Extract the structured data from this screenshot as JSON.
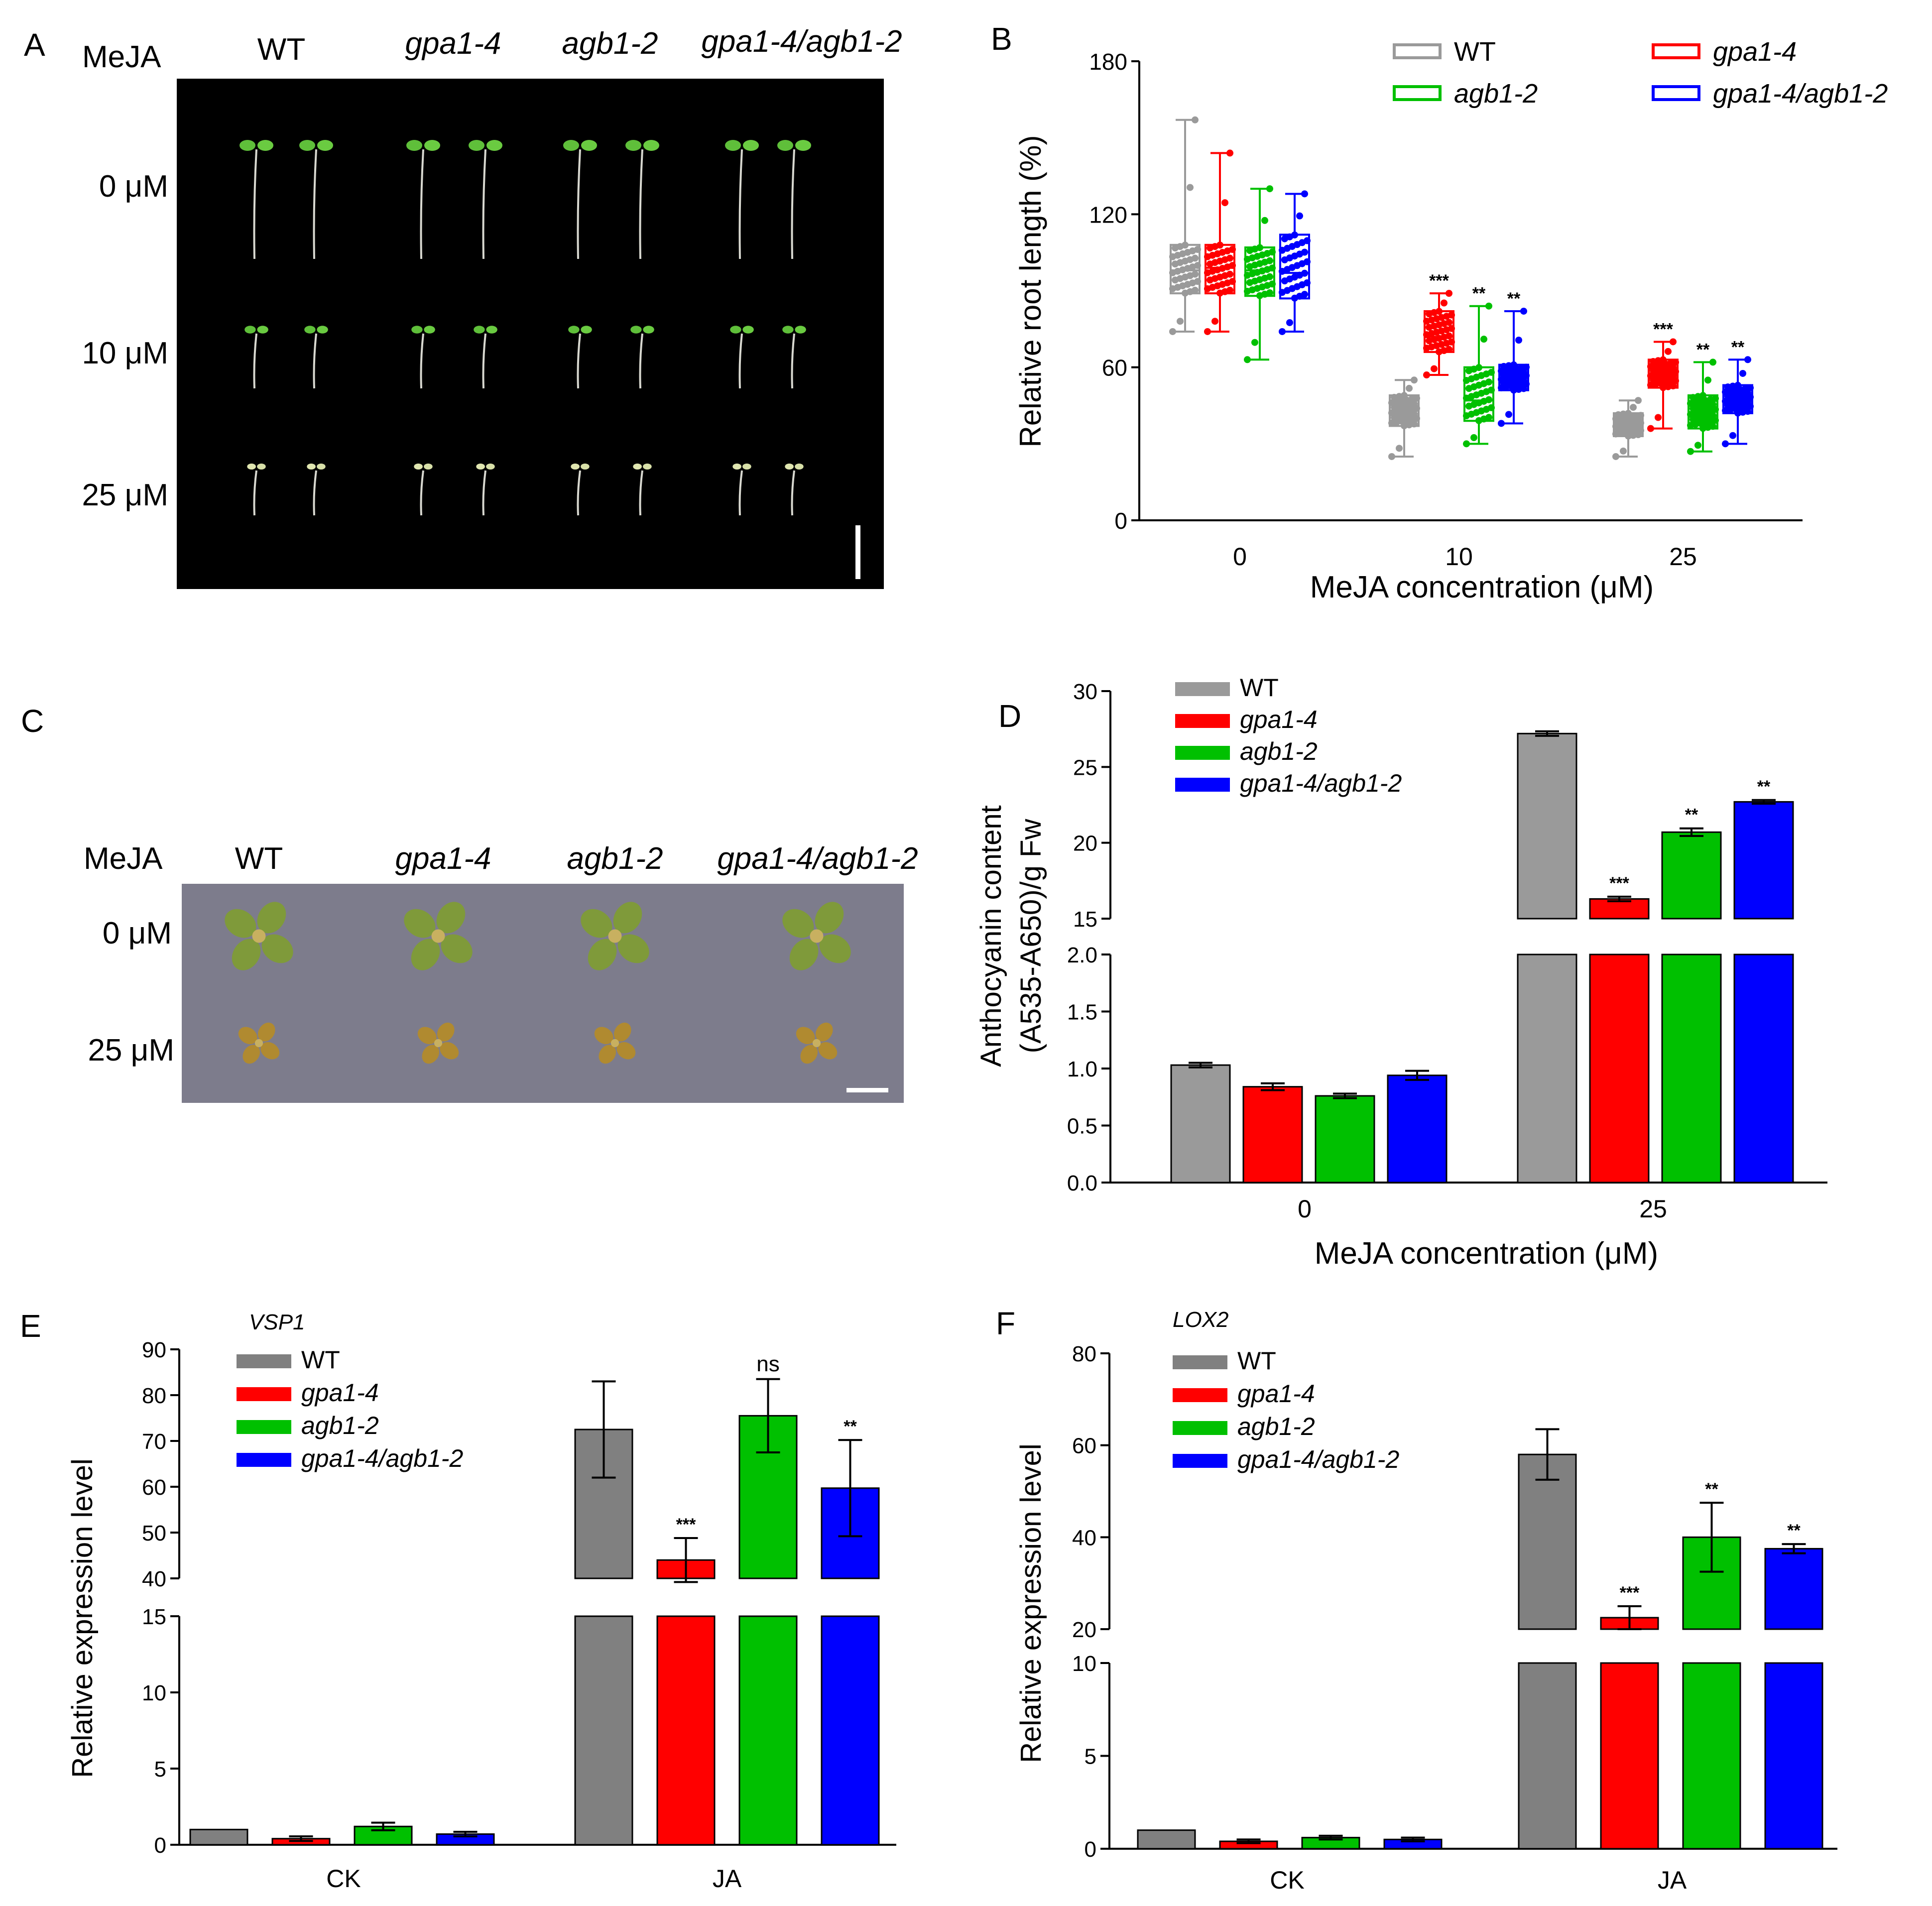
{
  "figure": {
    "panel_labels": [
      "A",
      "B",
      "C",
      "D",
      "E",
      "F"
    ],
    "genotypes": [
      "WT",
      "gpa1-4",
      "agb1-2",
      "gpa1-4/agb1-2"
    ],
    "colors": {
      "WT": "#9a9a9a",
      "gpa1-4": "#ff0000",
      "agb1-2": "#00c000",
      "gpa1-4/agb1-2": "#0000ff",
      "axis": "#000000"
    }
  },
  "panelA": {
    "treatment_label": "MeJA",
    "columns": [
      "WT",
      "gpa1-4",
      "agb1-2",
      "gpa1-4/agb1-2"
    ],
    "rows": [
      "0 μM",
      "10 μM",
      "25 μM"
    ],
    "background": "#000000"
  },
  "panelC": {
    "treatment_label": "MeJA",
    "columns": [
      "WT",
      "gpa1-4",
      "agb1-2",
      "gpa1-4/agb1-2"
    ],
    "rows": [
      "0 μM",
      "25 μM"
    ],
    "background": "#7d7c8c"
  },
  "chart_data": [
    {
      "id": "B",
      "type": "box",
      "ylabel": "Relative root length (%)",
      "xlabel": "MeJA concentration (μM)",
      "categories": [
        "0",
        "10",
        "25"
      ],
      "ylim": [
        0,
        180
      ],
      "yticks": [
        "0",
        "60",
        "120",
        "180"
      ],
      "legend": [
        "WT",
        "gpa1-4",
        "agb1-2",
        "gpa1-4/agb1-2"
      ],
      "legend_text": [
        "WT",
        "gpa1-4",
        "agb1-2",
        "gpa1-4/agb1-2"
      ],
      "series": [
        {
          "name": "WT",
          "boxes": [
            {
              "min": 74,
              "q1": 89,
              "median": 98,
              "q3": 108,
              "max": 157
            },
            {
              "min": 25,
              "q1": 37,
              "median": 43,
              "q3": 49,
              "max": 55
            },
            {
              "min": 25,
              "q1": 33,
              "median": 38,
              "q3": 42,
              "max": 47
            }
          ]
        },
        {
          "name": "gpa1-4",
          "boxes": [
            {
              "min": 74,
              "q1": 89,
              "median": 99,
              "q3": 108,
              "max": 144
            },
            {
              "min": 57,
              "q1": 66,
              "median": 72,
              "q3": 82,
              "max": 89
            },
            {
              "min": 36,
              "q1": 52,
              "median": 57,
              "q3": 63,
              "max": 70
            }
          ]
        },
        {
          "name": "agb1-2",
          "boxes": [
            {
              "min": 63,
              "q1": 88,
              "median": 98,
              "q3": 107,
              "max": 130
            },
            {
              "min": 30,
              "q1": 39,
              "median": 47,
              "q3": 60,
              "max": 84
            },
            {
              "min": 27,
              "q1": 36,
              "median": 41,
              "q3": 49,
              "max": 62
            }
          ]
        },
        {
          "name": "gpa1-4/agb1-2",
          "boxes": [
            {
              "min": 74,
              "q1": 87,
              "median": 97,
              "q3": 112,
              "max": 128
            },
            {
              "min": 38,
              "q1": 51,
              "median": 57,
              "q3": 61,
              "max": 82
            },
            {
              "min": 30,
              "q1": 42,
              "median": 47,
              "q3": 53,
              "max": 63
            }
          ]
        }
      ],
      "significance": [
        {
          "category": "10",
          "series": "gpa1-4",
          "label": "***"
        },
        {
          "category": "10",
          "series": "agb1-2",
          "label": "**"
        },
        {
          "category": "10",
          "series": "gpa1-4/agb1-2",
          "label": "**"
        },
        {
          "category": "25",
          "series": "gpa1-4",
          "label": "***"
        },
        {
          "category": "25",
          "series": "agb1-2",
          "label": "**"
        },
        {
          "category": "25",
          "series": "gpa1-4/agb1-2",
          "label": "**"
        }
      ]
    },
    {
      "id": "D",
      "type": "bar",
      "ylabel_lines": [
        "Anthocyanin content",
        "(A535-A650)/g Fw"
      ],
      "xlabel": "MeJA concentration (μM)",
      "categories": [
        "0",
        "25"
      ],
      "broken_axis": {
        "lower": [
          0,
          2.0
        ],
        "upper": [
          15,
          30
        ]
      },
      "yticks_lower": [
        "0.0",
        "0.5",
        "1.0",
        "1.5",
        "2.0"
      ],
      "yticks_upper": [
        "15",
        "20",
        "25",
        "30"
      ],
      "legend": [
        "WT",
        "gpa1-4",
        "agb1-2",
        "gpa1-4/agb1-2"
      ],
      "series": [
        {
          "name": "WT",
          "values": [
            1.03,
            27.2
          ],
          "errors": [
            0.02,
            0.15
          ]
        },
        {
          "name": "gpa1-4",
          "values": [
            0.84,
            16.3
          ],
          "errors": [
            0.03,
            0.15
          ]
        },
        {
          "name": "agb1-2",
          "values": [
            0.76,
            20.7
          ],
          "errors": [
            0.02,
            0.25
          ]
        },
        {
          "name": "gpa1-4/agb1-2",
          "values": [
            0.94,
            22.7
          ],
          "errors": [
            0.04,
            0.12
          ]
        }
      ],
      "significance": [
        {
          "category": "25",
          "series": "gpa1-4",
          "label": "***"
        },
        {
          "category": "25",
          "series": "agb1-2",
          "label": "**"
        },
        {
          "category": "25",
          "series": "gpa1-4/agb1-2",
          "label": "**"
        }
      ]
    },
    {
      "id": "E",
      "type": "bar",
      "gene": "VSP1",
      "ylabel": "Relative expression level",
      "categories": [
        "CK",
        "JA"
      ],
      "broken_axis": {
        "lower": [
          0,
          15
        ],
        "upper": [
          40,
          90
        ]
      },
      "yticks_lower": [
        "0",
        "5",
        "10",
        "15"
      ],
      "yticks_upper": [
        "40",
        "50",
        "60",
        "70",
        "80",
        "90"
      ],
      "legend": [
        "WT",
        "gpa1-4",
        "agb1-2",
        "gpa1-4/agb1-2"
      ],
      "colors": [
        "#808080",
        "#ff0000",
        "#00c000",
        "#0000ff"
      ],
      "series": [
        {
          "name": "WT",
          "values": [
            1.0,
            72.5
          ],
          "errors": [
            0.0,
            10.5
          ]
        },
        {
          "name": "gpa1-4",
          "values": [
            0.4,
            44.0
          ],
          "errors": [
            0.15,
            4.8
          ]
        },
        {
          "name": "agb1-2",
          "values": [
            1.2,
            75.5
          ],
          "errors": [
            0.25,
            8.0
          ]
        },
        {
          "name": "gpa1-4/agb1-2",
          "values": [
            0.7,
            59.7
          ],
          "errors": [
            0.15,
            10.5
          ]
        }
      ],
      "significance": [
        {
          "category": "JA",
          "series": "gpa1-4",
          "label": "***"
        },
        {
          "category": "JA",
          "series": "agb1-2",
          "label": "ns"
        },
        {
          "category": "JA",
          "series": "gpa1-4/agb1-2",
          "label": "**"
        }
      ]
    },
    {
      "id": "F",
      "type": "bar",
      "gene": "LOX2",
      "ylabel": "Relative expression level",
      "categories": [
        "CK",
        "JA"
      ],
      "broken_axis": {
        "lower": [
          0,
          10
        ],
        "upper": [
          20,
          80
        ]
      },
      "yticks_lower": [
        "0",
        "5",
        "10"
      ],
      "yticks_upper": [
        "20",
        "40",
        "60",
        "80"
      ],
      "legend": [
        "WT",
        "gpa1-4",
        "agb1-2",
        "gpa1-4/agb1-2"
      ],
      "colors": [
        "#808080",
        "#ff0000",
        "#00c000",
        "#0000ff"
      ],
      "series": [
        {
          "name": "WT",
          "values": [
            1.0,
            58.0
          ],
          "errors": [
            0.0,
            5.5
          ]
        },
        {
          "name": "gpa1-4",
          "values": [
            0.4,
            22.5
          ],
          "errors": [
            0.1,
            2.5
          ]
        },
        {
          "name": "agb1-2",
          "values": [
            0.6,
            40.0
          ],
          "errors": [
            0.1,
            7.5
          ]
        },
        {
          "name": "gpa1-4/agb1-2",
          "values": [
            0.5,
            37.5
          ],
          "errors": [
            0.1,
            1.0
          ]
        }
      ],
      "significance": [
        {
          "category": "JA",
          "series": "gpa1-4",
          "label": "***"
        },
        {
          "category": "JA",
          "series": "agb1-2",
          "label": "**"
        },
        {
          "category": "JA",
          "series": "gpa1-4/agb1-2",
          "label": "**"
        }
      ]
    }
  ]
}
